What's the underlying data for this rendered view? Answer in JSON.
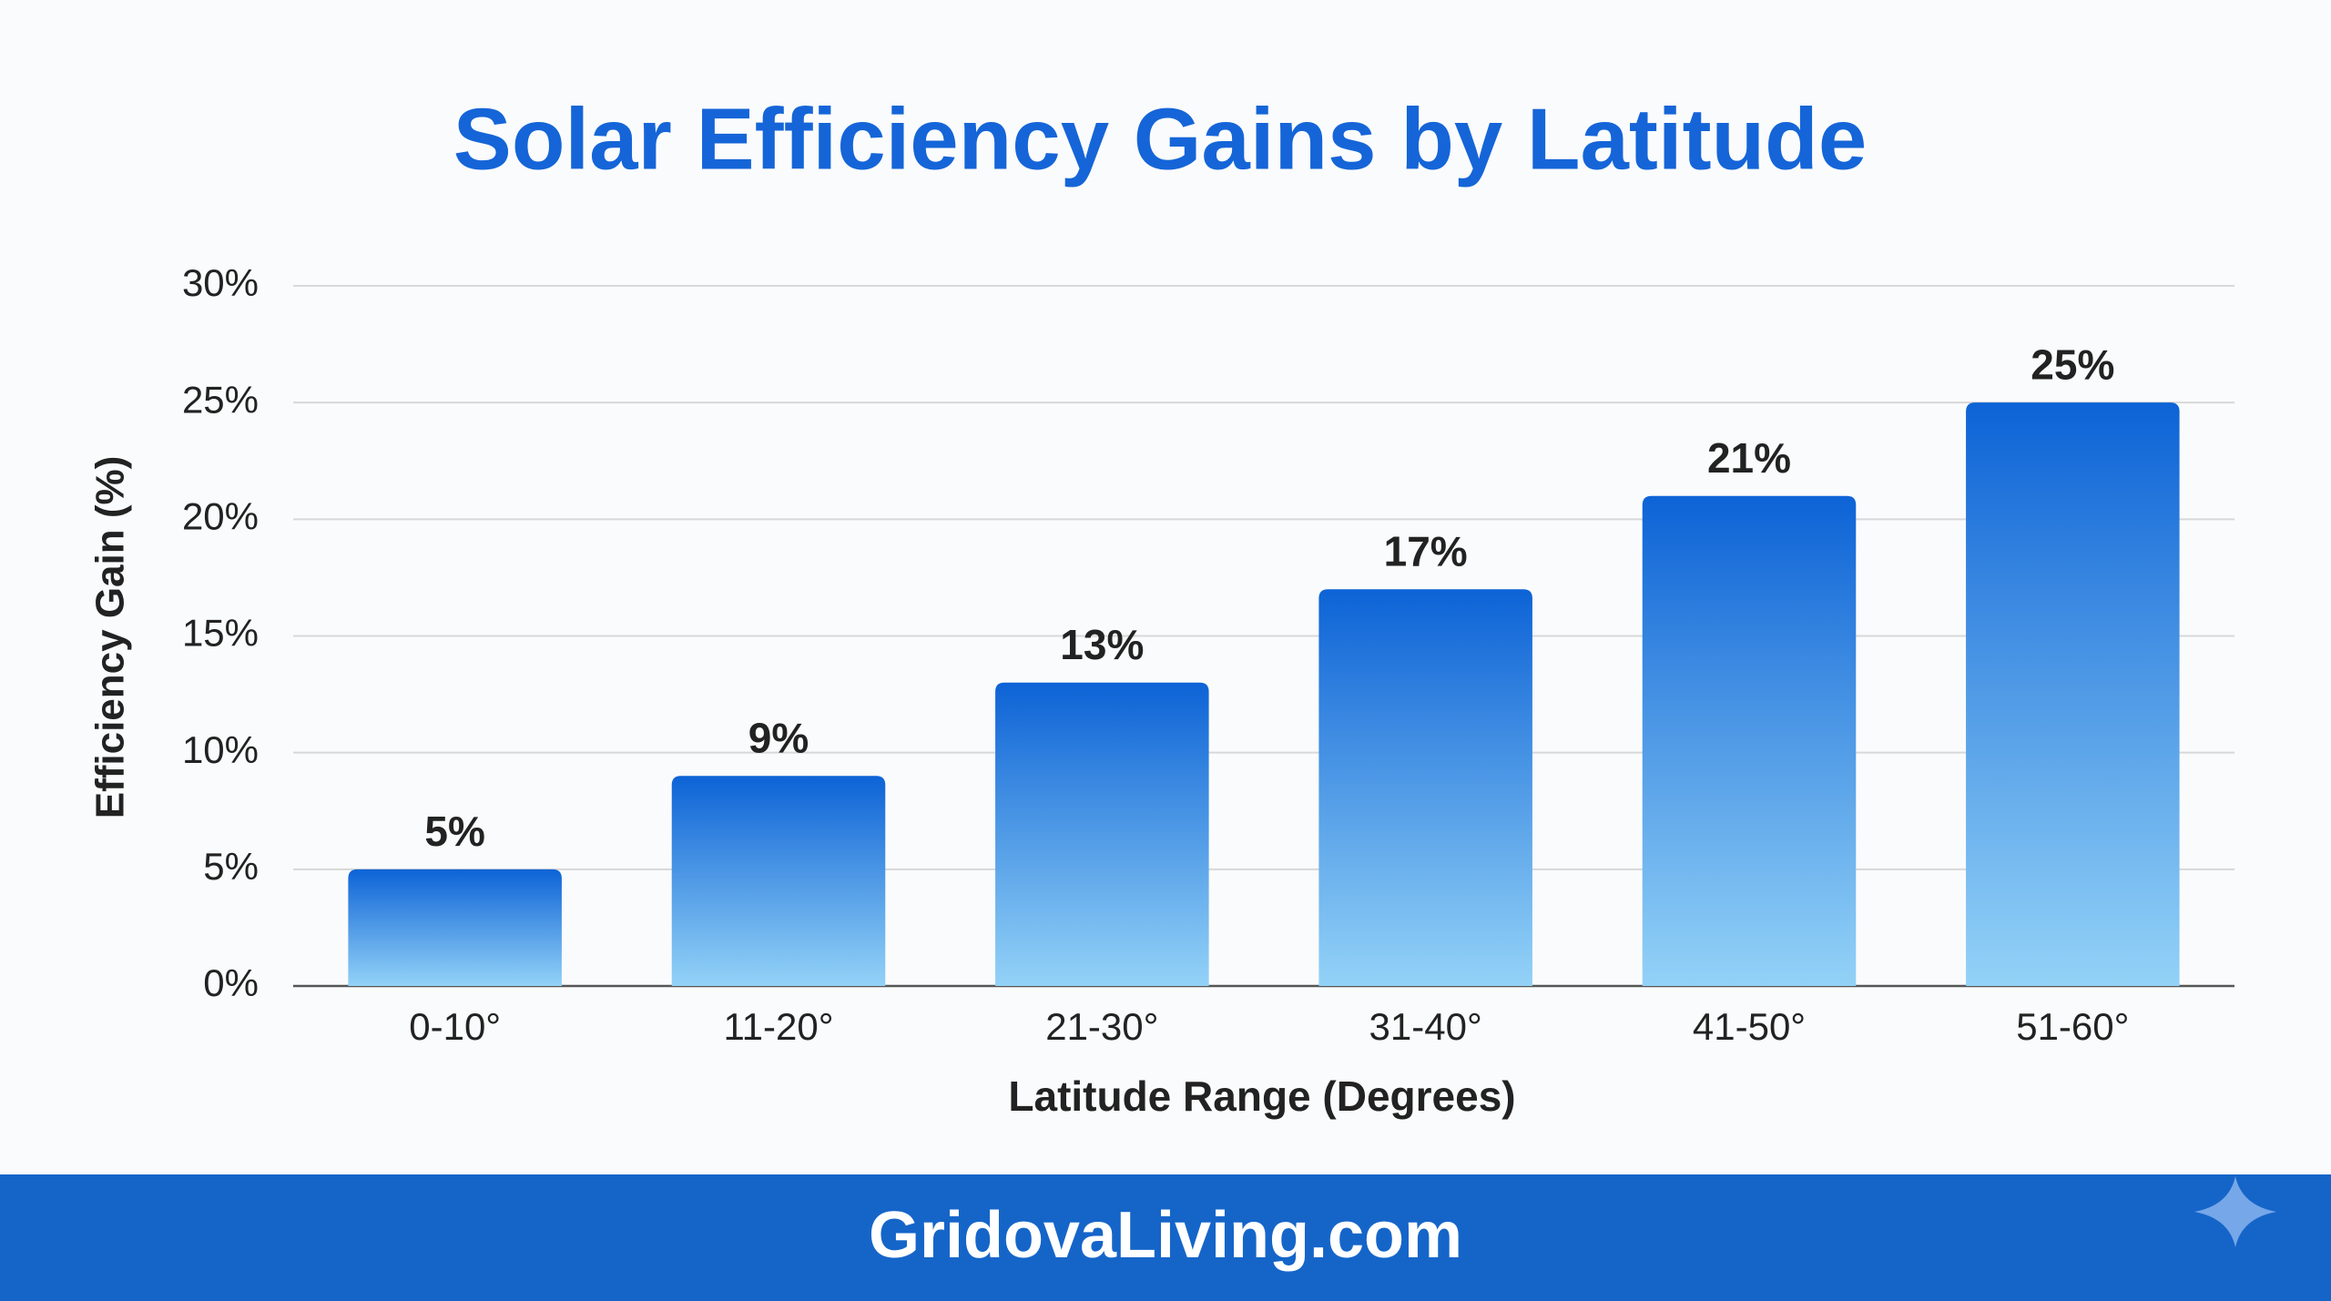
{
  "chart_data": {
    "type": "bar",
    "title": "Solar Efficiency Gains by Latitude",
    "x_label": "Latitude Range (Degrees)",
    "y_label": "Efficiency Gain (%)",
    "categories": [
      "0-10°",
      "11-20°",
      "21-30°",
      "31-40°",
      "41-50°",
      "51-60°"
    ],
    "values": [
      5,
      9,
      13,
      17,
      21,
      25
    ],
    "value_labels": [
      "5%",
      "9%",
      "13%",
      "17%",
      "21%",
      "25%"
    ],
    "color": "#0d63d6",
    "ylim": [
      0,
      30
    ],
    "yticks": [
      {
        "value": 0,
        "label": "0%"
      },
      {
        "value": 5,
        "label": "5%"
      },
      {
        "value": 10,
        "label": "10%"
      },
      {
        "value": 15,
        "label": "15%"
      },
      {
        "value": 20,
        "label": "20%"
      },
      {
        "value": 25,
        "label": "25%"
      },
      {
        "value": 30,
        "label": "30%"
      }
    ],
    "grid": true
  },
  "footer": "GridovaLiving.com"
}
